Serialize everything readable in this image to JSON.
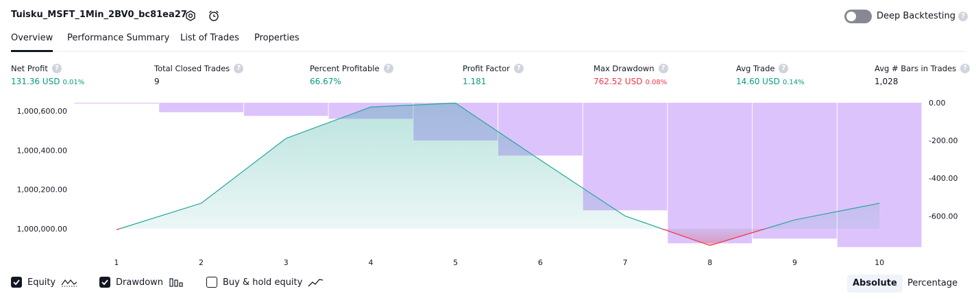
{
  "header": {
    "strategy_name": "Tuisku_MSFT_1Min_2BV0_bc81ea27",
    "settings_icon": "gear-icon",
    "alert_icon": "alarm-clock-plus-icon",
    "deep_backtesting_label": "Deep Backtesting",
    "deep_backtesting_on": false,
    "help_glyph": "?"
  },
  "tabs": [
    {
      "label": "Overview",
      "active": true
    },
    {
      "label": "Performance Summary",
      "active": false
    },
    {
      "label": "List of Trades",
      "active": false
    },
    {
      "label": "Properties",
      "active": false
    }
  ],
  "metrics": [
    {
      "label": "Net Profit",
      "value": "131.36 USD",
      "sub": "0.01%",
      "color": "#089981"
    },
    {
      "label": "Total Closed Trades",
      "value": "9",
      "sub": "",
      "color": "#131722"
    },
    {
      "label": "Percent Profitable",
      "value": "66.67%",
      "sub": "",
      "color": "#089981"
    },
    {
      "label": "Profit Factor",
      "value": "1.181",
      "sub": "",
      "color": "#089981"
    },
    {
      "label": "Max Drawdown",
      "value": "762.52 USD",
      "sub": "0.08%",
      "color": "#f23645"
    },
    {
      "label": "Avg Trade",
      "value": "14.60 USD",
      "sub": "0.14%",
      "color": "#089981"
    },
    {
      "label": "Avg # Bars in Trades",
      "value": "1,028",
      "sub": "",
      "color": "#131722"
    }
  ],
  "chart_data": {
    "type": "line",
    "x": [
      1,
      2,
      3,
      4,
      5,
      6,
      7,
      8,
      9,
      10
    ],
    "series": [
      {
        "name": "Equity",
        "axis": "left",
        "values": [
          999995,
          1000130,
          1000460,
          1000620,
          1000640,
          1000350,
          1000065,
          999915,
          1000045,
          1000130
        ]
      },
      {
        "name": "Drawdown",
        "axis": "right",
        "type": "bar",
        "values": [
          0,
          -50,
          -70,
          -85,
          -200,
          -280,
          -570,
          -745,
          -720,
          -765
        ]
      }
    ],
    "left_axis": {
      "ticks": [
        "1,000,600.00",
        "1,000,400.00",
        "1,000,200.00",
        "1,000,000.00"
      ],
      "tick_values": [
        1000600,
        1000400,
        1000200,
        1000000
      ]
    },
    "right_axis": {
      "ticks": [
        "0.00",
        "-200.00",
        "-400.00",
        "-600.00"
      ],
      "tick_values": [
        0,
        -200,
        -400,
        -600
      ]
    },
    "x_ticks": [
      "1",
      "2",
      "3",
      "4",
      "5",
      "6",
      "7",
      "8",
      "9",
      "10"
    ],
    "colors": {
      "equity_up": "#26a69a",
      "equity_down": "#f23645",
      "drawdown": "#d7b8fb"
    }
  },
  "legend": [
    {
      "label": "Equity",
      "checked": true,
      "icon": "equity-line-icon"
    },
    {
      "label": "Drawdown",
      "checked": true,
      "icon": "drawdown-bars-icon"
    },
    {
      "label": "Buy & hold equity",
      "checked": false,
      "icon": "buy-hold-line-icon"
    }
  ],
  "view_mode": {
    "absolute_label": "Absolute",
    "percentage_label": "Percentage",
    "selected": "Absolute"
  }
}
